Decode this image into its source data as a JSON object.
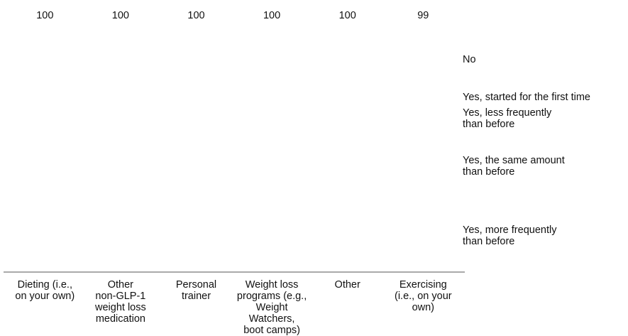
{
  "chart_data": {
    "type": "bar",
    "stacked": true,
    "categories": [
      "Dieting (i.e.,\non your own)",
      "Other\nnon-GLP-1\nweight loss\nmedication",
      "Personal\ntrainer",
      "Weight loss\nprograms (e.g.,\nWeight Watchers,\nboot camps)",
      "Other",
      "Exercising\n(i.e., on your\nown)"
    ],
    "totals": [
      100,
      100,
      100,
      100,
      100,
      99
    ],
    "series": [
      {
        "name": "No",
        "values": [
          null,
          null,
          null,
          null,
          null,
          null
        ]
      },
      {
        "name": "Yes, started for the first time",
        "values": [
          null,
          null,
          null,
          null,
          null,
          null
        ]
      },
      {
        "name": "Yes, less frequently\nthan before",
        "values": [
          null,
          null,
          null,
          null,
          null,
          null
        ]
      },
      {
        "name": "Yes, the same amount\nthan before",
        "values": [
          null,
          null,
          null,
          null,
          null,
          null
        ]
      },
      {
        "name": "Yes, more frequently\nthan before",
        "values": [
          null,
          null,
          null,
          null,
          null,
          null
        ]
      }
    ]
  }
}
